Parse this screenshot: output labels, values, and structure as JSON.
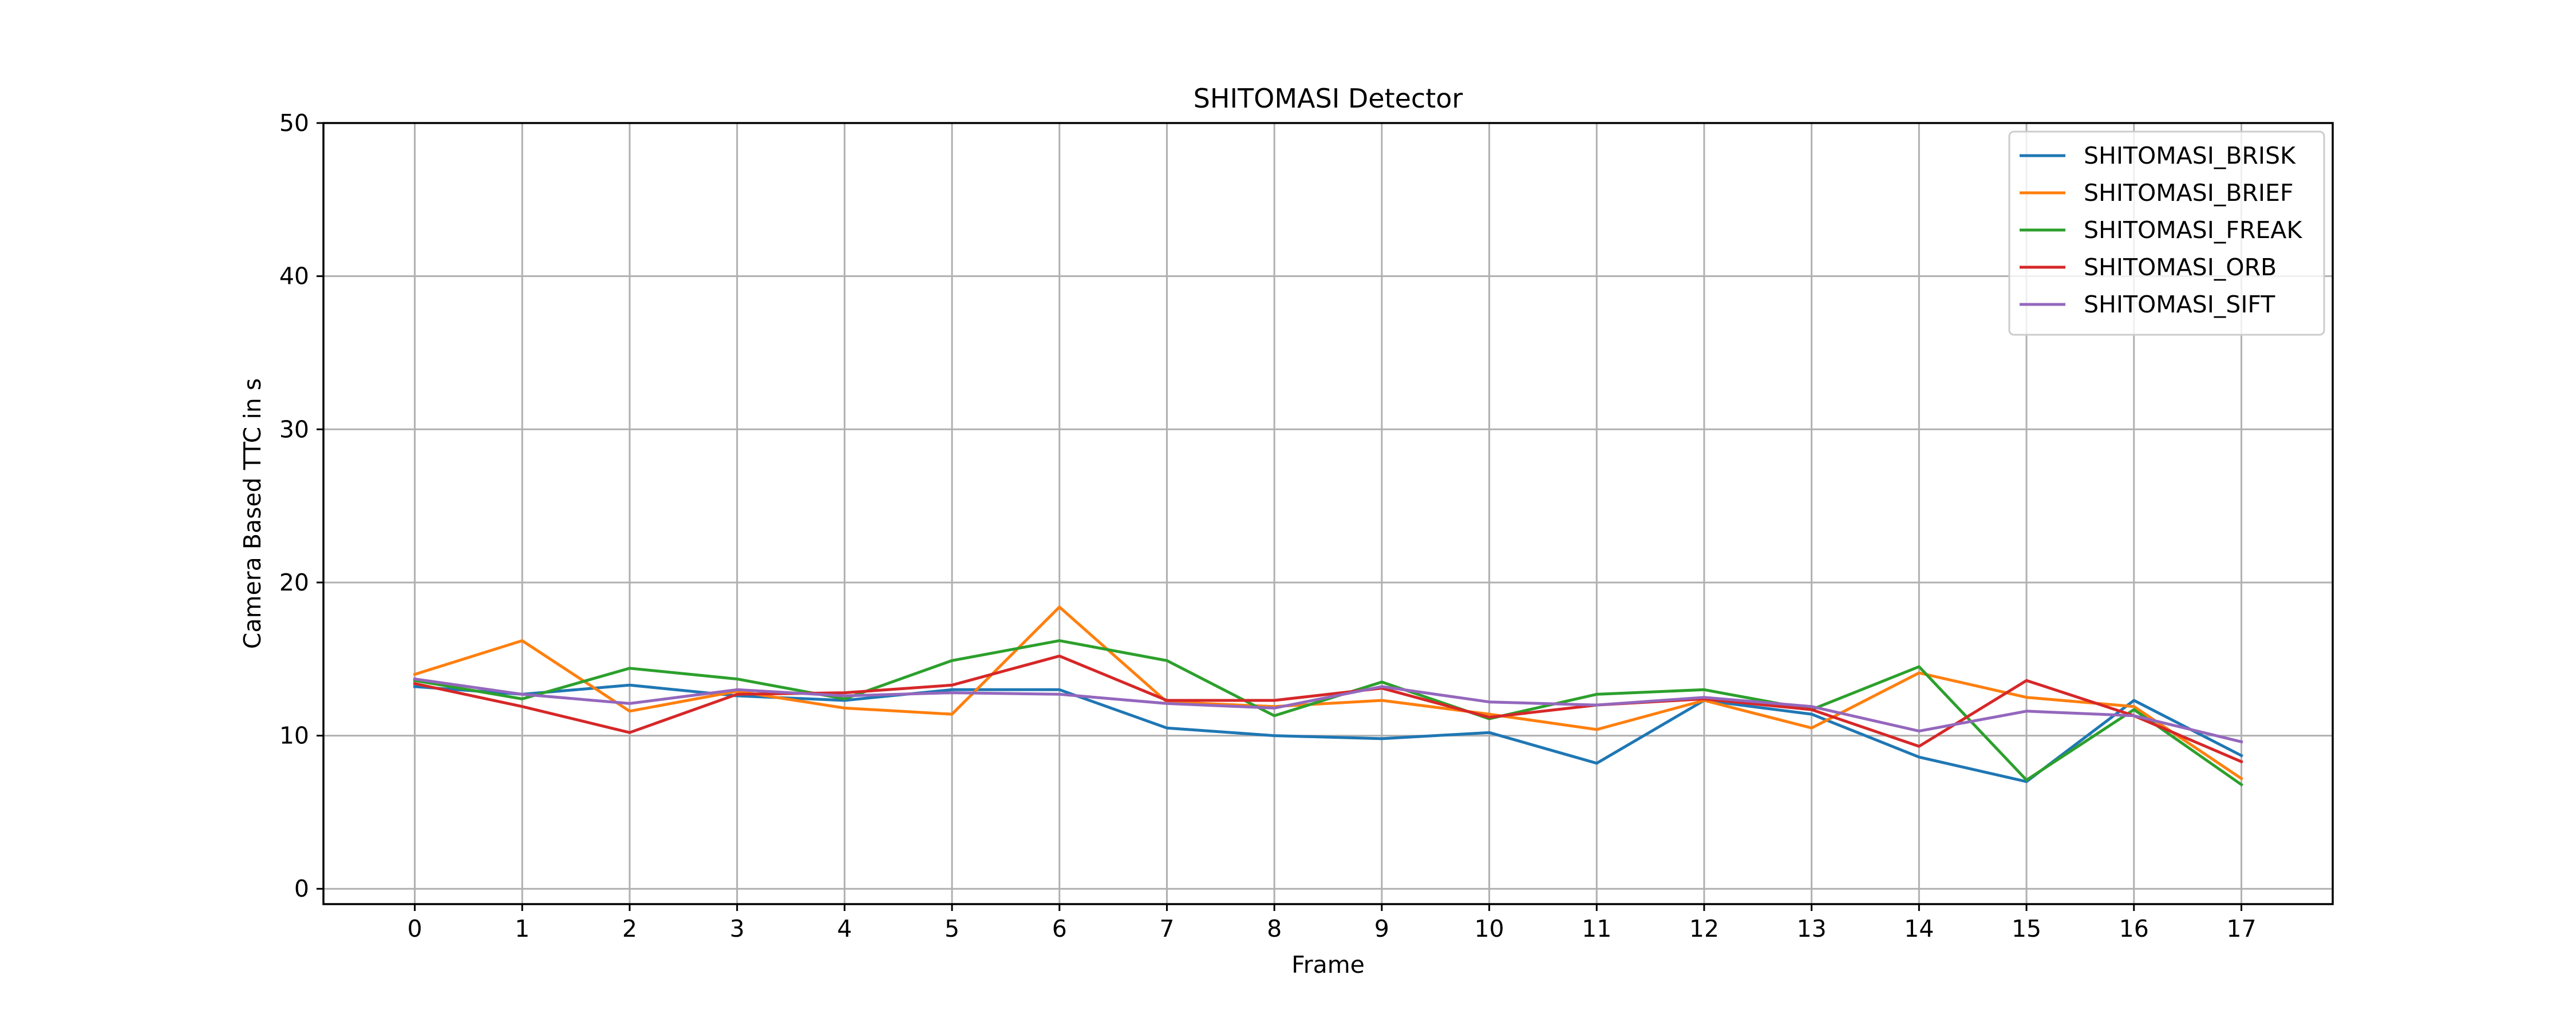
{
  "chart_data": {
    "type": "line",
    "title": "SHITOMASI Detector",
    "xlabel": "Frame",
    "ylabel": "Camera Based TTC in s",
    "x": [
      0,
      1,
      2,
      3,
      4,
      5,
      6,
      7,
      8,
      9,
      10,
      11,
      12,
      13,
      14,
      15,
      16,
      17
    ],
    "xlim": [
      -0.85,
      17.85
    ],
    "ylim": [
      -1,
      50
    ],
    "xticks": [
      "0",
      "1",
      "2",
      "3",
      "4",
      "5",
      "6",
      "7",
      "8",
      "9",
      "10",
      "11",
      "12",
      "13",
      "14",
      "15",
      "16",
      "17"
    ],
    "yticks": [
      "0",
      "10",
      "20",
      "30",
      "40",
      "50"
    ],
    "ytick_values": [
      0,
      10,
      20,
      30,
      40,
      50
    ],
    "grid": true,
    "legend_position": "top-right",
    "series": [
      {
        "name": "SHITOMASI_BRISK",
        "color": "#1f77b4",
        "values": [
          13.2,
          12.7,
          13.3,
          12.6,
          12.3,
          13.0,
          13.0,
          10.5,
          10.0,
          9.8,
          10.2,
          8.2,
          12.3,
          11.4,
          8.6,
          7.0,
          12.3,
          8.7
        ]
      },
      {
        "name": "SHITOMASI_BRIEF",
        "color": "#ff7f0e",
        "values": [
          14.0,
          16.2,
          11.6,
          12.9,
          11.8,
          11.4,
          18.4,
          12.2,
          11.9,
          12.3,
          11.4,
          10.4,
          12.3,
          10.5,
          14.1,
          12.5,
          11.9,
          7.2
        ]
      },
      {
        "name": "SHITOMASI_FREAK",
        "color": "#2ca02c",
        "values": [
          13.6,
          12.4,
          14.4,
          13.7,
          12.4,
          14.9,
          16.2,
          14.9,
          11.3,
          13.5,
          11.1,
          12.7,
          13.0,
          11.7,
          14.5,
          7.1,
          11.7,
          6.8
        ]
      },
      {
        "name": "SHITOMASI_ORB",
        "color": "#d62728",
        "values": [
          13.4,
          11.9,
          10.2,
          12.7,
          12.8,
          13.3,
          15.2,
          12.3,
          12.3,
          13.1,
          11.2,
          12.0,
          12.4,
          11.7,
          9.3,
          13.6,
          11.3,
          8.3
        ]
      },
      {
        "name": "SHITOMASI_SIFT",
        "color": "#9467bd",
        "values": [
          13.7,
          12.7,
          12.1,
          13.0,
          12.6,
          12.8,
          12.7,
          12.1,
          11.8,
          13.2,
          12.2,
          12.0,
          12.5,
          11.9,
          10.3,
          11.6,
          11.3,
          9.6
        ]
      }
    ]
  }
}
